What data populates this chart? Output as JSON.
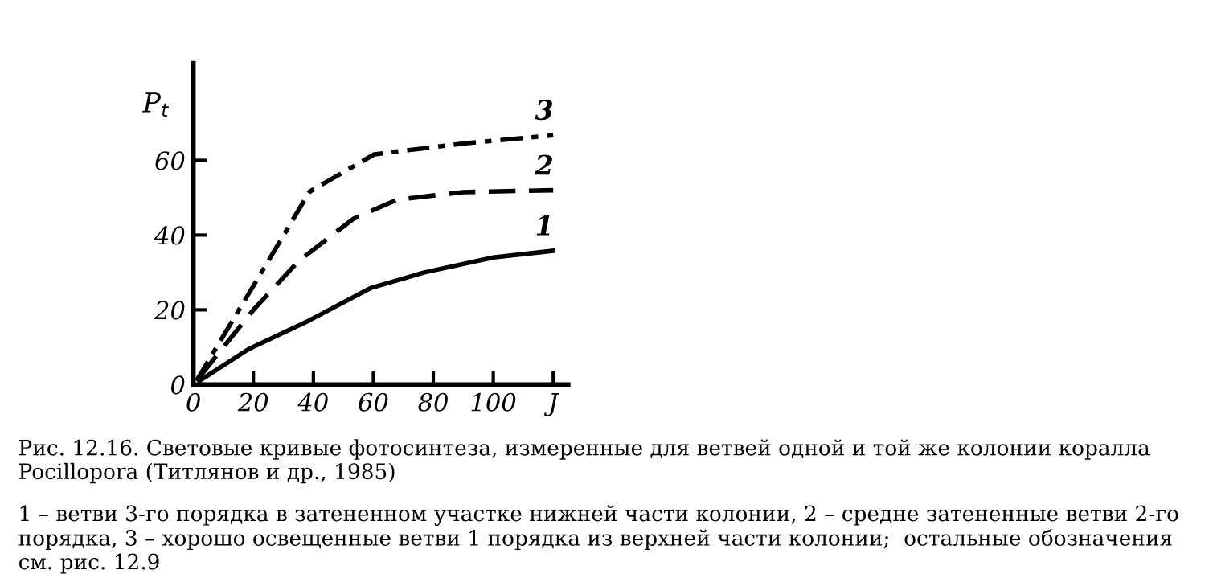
{
  "chart_data": {
    "type": "line",
    "ylabel": "P$_{t}$",
    "xlim": [
      0,
      125
    ],
    "ylim": [
      0,
      86
    ],
    "xticks": [
      0,
      20,
      40,
      60,
      80,
      100,
      {
        "value": 120,
        "label": "J"
      }
    ],
    "yticks": [
      0,
      20,
      40,
      60
    ],
    "grid": false,
    "legend": false,
    "marker": "none",
    "series": [
      {
        "name": "1",
        "color": "#000000",
        "line_style": "solid",
        "x": [
          2,
          18.4,
          38.7,
          59,
          77,
          100,
          120
        ],
        "values": [
          1,
          9.5,
          17.2,
          25.8,
          30,
          34,
          35.8
        ]
      },
      {
        "name": "2",
        "color": "#000000",
        "line_style": "dashed",
        "x": [
          2,
          20,
          35,
          53.4,
          68,
          90,
          120
        ],
        "values": [
          2,
          20,
          33,
          44.4,
          49.5,
          51.5,
          52
        ]
      },
      {
        "name": "3",
        "color": "#000000",
        "line_style": "dashdot",
        "x": [
          1,
          23.8,
          38.7,
          60.3,
          90,
          120
        ],
        "values": [
          1,
          31.5,
          51.6,
          61.6,
          64.5,
          66.7
        ]
      }
    ],
    "annotations": [
      "Рис. 12.16. Световые кривые фотосинтеза, измеренные для ветвей одной и той же колонии коралла Pocillopora (Титлянов и др., 1985)",
      "1 – ветви 3-го порядка в затененном участке нижней части колонии, 2 – средне затененные ветви 2-го порядка, 3 – хорошо освещенные ветви 1 порядка из верхней части колонии;  остальные обозначения см. рис. 12.9"
    ]
  }
}
